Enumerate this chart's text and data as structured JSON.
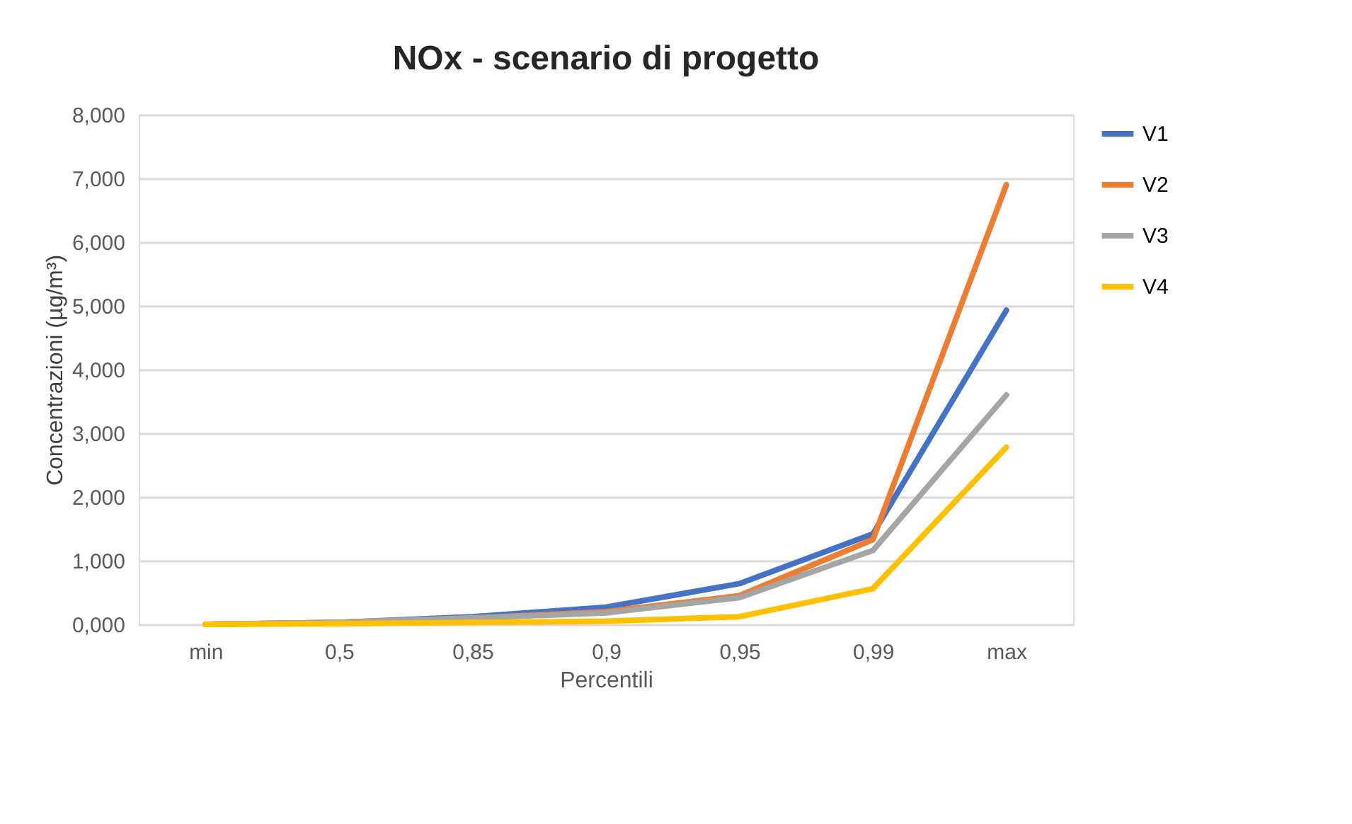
{
  "chart_data": {
    "type": "line",
    "title": "NOx - scenario di progetto",
    "xlabel": "Percentili",
    "ylabel": "Concentrazioni (µg/m³)",
    "categories": [
      "min",
      "0,5",
      "0,85",
      "0,9",
      "0,95",
      "0,99",
      "max"
    ],
    "series": [
      {
        "name": "V1",
        "color": "#4472c4",
        "values": [
          0,
          0.03,
          0.12,
          0.27,
          0.64,
          1.42,
          4.93
        ]
      },
      {
        "name": "V2",
        "color": "#ed7d31",
        "values": [
          0,
          0.03,
          0.1,
          0.2,
          0.45,
          1.33,
          6.9
        ]
      },
      {
        "name": "V3",
        "color": "#a5a5a5",
        "values": [
          0,
          0.03,
          0.1,
          0.18,
          0.42,
          1.16,
          3.6
        ]
      },
      {
        "name": "V4",
        "color": "#ffc000",
        "values": [
          0,
          0.01,
          0.03,
          0.05,
          0.12,
          0.56,
          2.78
        ]
      }
    ],
    "ylim": [
      0,
      8
    ],
    "yticks": [
      {
        "value": 0,
        "label": "0,000"
      },
      {
        "value": 1,
        "label": "1,000"
      },
      {
        "value": 2,
        "label": "2,000"
      },
      {
        "value": 3,
        "label": "3,000"
      },
      {
        "value": 4,
        "label": "4,000"
      },
      {
        "value": 5,
        "label": "5,000"
      },
      {
        "value": 6,
        "label": "6,000"
      },
      {
        "value": 7,
        "label": "7,000"
      },
      {
        "value": 8,
        "label": "8,000"
      }
    ],
    "grid": "y",
    "legend": "right",
    "marker": "none",
    "line_style": "solid"
  }
}
